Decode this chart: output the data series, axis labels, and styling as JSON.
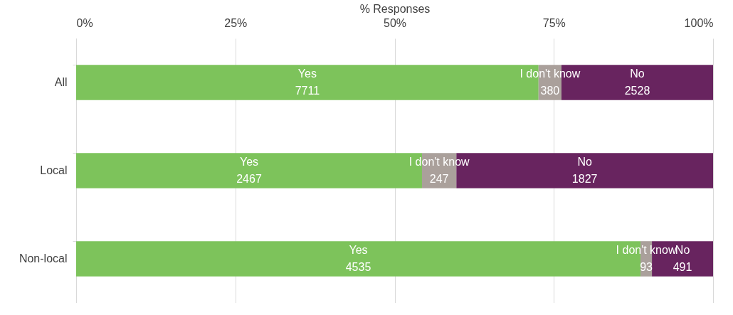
{
  "chart_data": {
    "type": "bar",
    "orientation": "horizontal",
    "stacked": true,
    "xlabel": "% Responses",
    "categories": [
      "All",
      "Local",
      "Non-local"
    ],
    "xlim": [
      0,
      100
    ],
    "xticks": [
      {
        "value": 0,
        "label": "0%"
      },
      {
        "value": 25,
        "label": "25%"
      },
      {
        "value": 50,
        "label": "50%"
      },
      {
        "value": 75,
        "label": "75%"
      },
      {
        "value": 100,
        "label": "100%"
      }
    ],
    "grid": "x",
    "legend": false,
    "series": [
      {
        "name": "Yes",
        "color": "#7dc35b",
        "values": [
          72.6,
          54.3,
          88.6
        ]
      },
      {
        "name": "I don't know",
        "color": "#aaa09b",
        "values": [
          3.6,
          5.4,
          1.8
        ]
      },
      {
        "name": "No",
        "color": "#68245f",
        "values": [
          23.8,
          40.3,
          9.6
        ]
      }
    ],
    "annotations": [
      "7711",
      "2467",
      "4535",
      "380",
      "247",
      "93",
      "2528",
      "1827",
      "491"
    ]
  }
}
